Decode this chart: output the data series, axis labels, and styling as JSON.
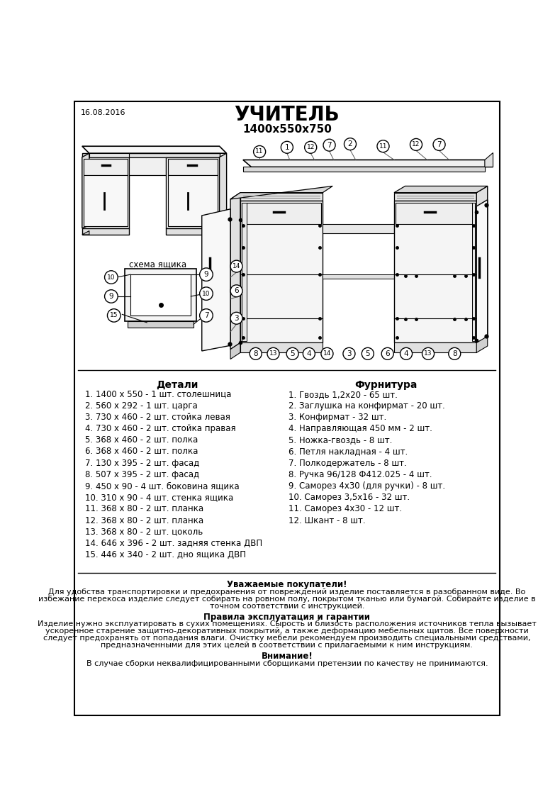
{
  "bg_color": "#ffffff",
  "date_text": "16.08.2016",
  "title": "УЧИТЕЛЬ",
  "subtitle": "1400х550х750",
  "details_header": "Детали",
  "hardware_header": "Фурнитура",
  "details": [
    "1. 1400 х 550 - 1 шт. столешница",
    "2. 560 х 292 - 1 шт. царга",
    "3. 730 х 460 - 2 шт. стойка левая",
    "4. 730 х 460 - 2 шт. стойка правая",
    "5. 368 х 460 - 2 шт. полка",
    "6. 368 х 460 - 2 шт. полка",
    "7. 130 х 395 - 2 шт. фасад",
    "8. 507 х 395 - 2 шт. фасад",
    "9. 450 х 90 - 4 шт. боковина ящика",
    "10. 310 х 90 - 4 шт. стенка ящика",
    "11. 368 х 80 - 2 шт. планка",
    "12. 368 х 80 - 2 шт. планка",
    "13. 368 х 80 - 2 шт. цоколь",
    "14. 646 х 396 - 2 шт. задняя стенка ДВП",
    "15. 446 х 340 - 2 шт. дно ящика ДВП"
  ],
  "hardware": [
    "1. Гвоздь 1,2х20 - 65 шт.",
    "2. Заглушка на конфирмат - 20 шт.",
    "3. Конфирмат - 32 шт.",
    "4. Направляющая 450 мм - 2 шт.",
    "5. Ножка-гвоздь - 8 шт.",
    "6. Петля накладная - 4 шт.",
    "7. Полкодержатель - 8 шт.",
    "8. Ручка 96/128 Ф412.025 - 4 шт.",
    "9. Саморез 4х30 (для ручки) - 8 шт.",
    "10. Саморез 3,5х16 - 32 шт.",
    "11. Саморез 4х30 - 12 шт.",
    "12. Шкант - 8 шт."
  ],
  "footer_title1": "Уважаемые покупатели!",
  "footer_title2": "Правила эксплуатация и гарантии",
  "footer_title3": "Внимание!",
  "ft1_lines": [
    "Для удобства транспортировки и предохранения от повреждений изделие поставляется в разобранном виде. Во",
    "избежание перекоса изделие следует собирать на ровном полу, покрытом тканью или бумагой. Собирайте изделие в",
    "точном соответствии с инструкцией."
  ],
  "ft2_lines": [
    "Изделие нужно эксплуатировать в сухих помещениях. Сырость и близость расположения источников тепла вызывает",
    "ускоренное старение защитно-декоративных покрытий, а также деформацию мебельных щитов. Все поверхности",
    "следует предохранять от попадания влаги. Очистку мебели рекомендуем производить специальными средствами,",
    "предназначенными для этих целей в соответствии с прилагаемыми к ним инструкциям."
  ],
  "ft3_lines": [
    "В случае сборки неквалифицированными сборщиками претензии по качеству не принимаются."
  ]
}
